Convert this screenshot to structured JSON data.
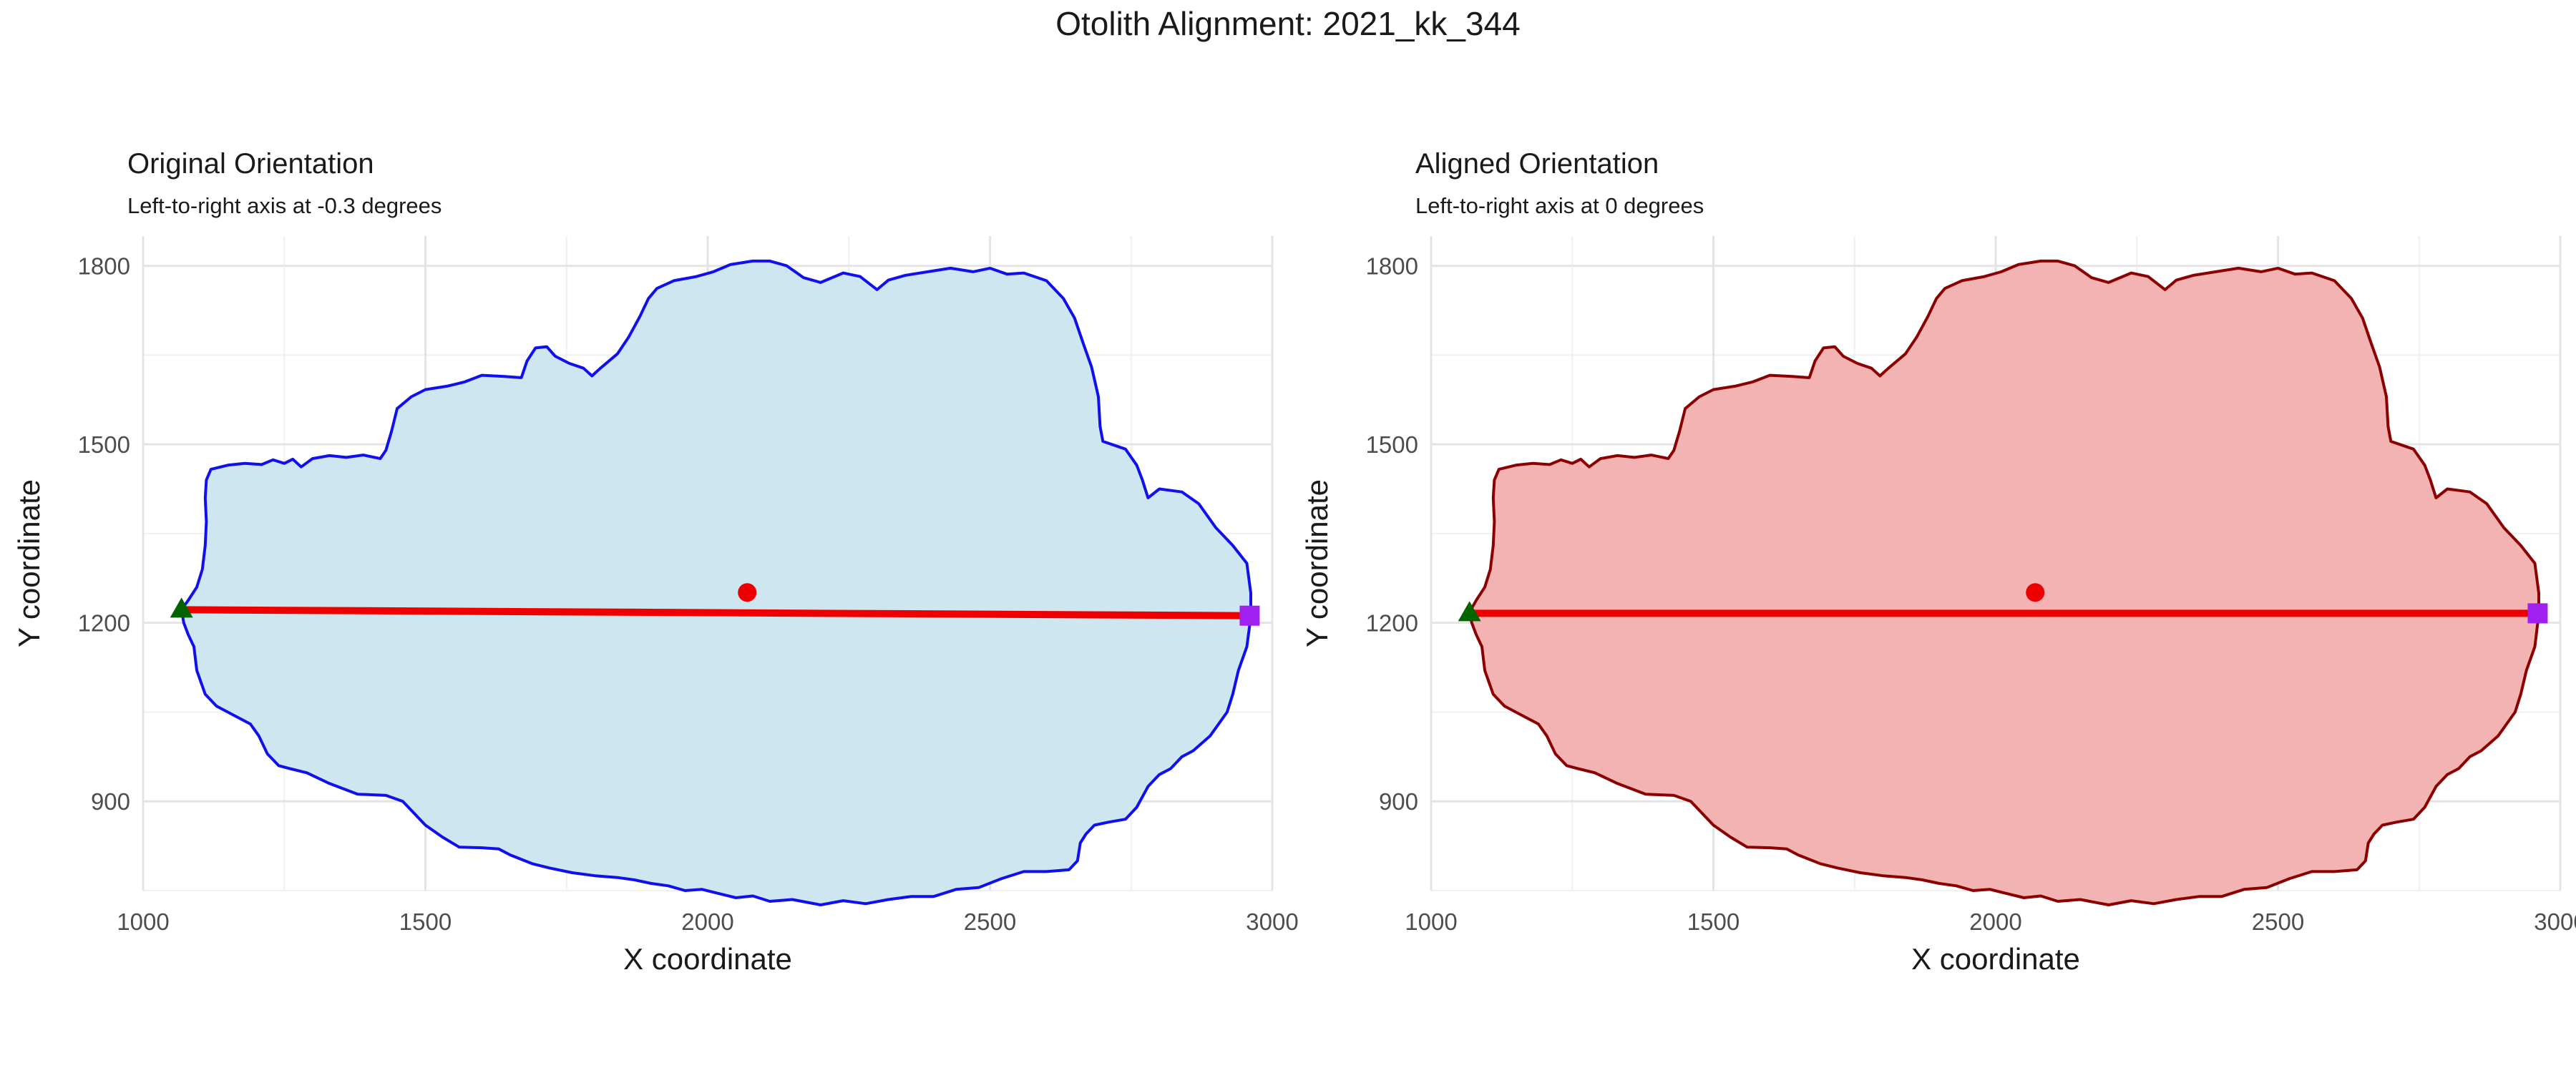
{
  "figure": {
    "title": "Otolith Alignment: 2021_kk_344"
  },
  "chart_data": [
    {
      "type": "scatter",
      "panel": "left",
      "title": "Original Orientation",
      "subtitle": "Left-to-right axis at -0.3 degrees",
      "xlabel": "X coordinate",
      "ylabel": "Y coordinate",
      "xlim": [
        1000,
        3000
      ],
      "ylim": [
        750,
        1850
      ],
      "x_ticks": [
        1000,
        1500,
        2000,
        2500,
        3000
      ],
      "y_ticks": [
        900,
        1200,
        1500,
        1800
      ],
      "grid": true,
      "outline_fill": "#cde6ef",
      "outline_stroke": "#1010ee",
      "outline": [
        [
          1068,
          1222
        ],
        [
          1080,
          1238
        ],
        [
          1095,
          1260
        ],
        [
          1105,
          1290
        ],
        [
          1110,
          1330
        ],
        [
          1112,
          1370
        ],
        [
          1110,
          1410
        ],
        [
          1112,
          1440
        ],
        [
          1120,
          1458
        ],
        [
          1150,
          1465
        ],
        [
          1180,
          1468
        ],
        [
          1210,
          1466
        ],
        [
          1230,
          1474
        ],
        [
          1250,
          1468
        ],
        [
          1265,
          1475
        ],
        [
          1280,
          1462
        ],
        [
          1300,
          1476
        ],
        [
          1330,
          1481
        ],
        [
          1360,
          1478
        ],
        [
          1390,
          1482
        ],
        [
          1420,
          1476
        ],
        [
          1430,
          1490
        ],
        [
          1440,
          1522
        ],
        [
          1450,
          1560
        ],
        [
          1475,
          1580
        ],
        [
          1500,
          1592
        ],
        [
          1540,
          1598
        ],
        [
          1570,
          1605
        ],
        [
          1600,
          1616
        ],
        [
          1640,
          1614
        ],
        [
          1670,
          1612
        ],
        [
          1680,
          1640
        ],
        [
          1695,
          1662
        ],
        [
          1715,
          1664
        ],
        [
          1730,
          1648
        ],
        [
          1755,
          1636
        ],
        [
          1780,
          1628
        ],
        [
          1795,
          1615
        ],
        [
          1810,
          1628
        ],
        [
          1840,
          1652
        ],
        [
          1860,
          1680
        ],
        [
          1880,
          1715
        ],
        [
          1895,
          1745
        ],
        [
          1910,
          1762
        ],
        [
          1940,
          1775
        ],
        [
          1980,
          1782
        ],
        [
          2010,
          1790
        ],
        [
          2040,
          1802
        ],
        [
          2080,
          1808
        ],
        [
          2110,
          1808
        ],
        [
          2140,
          1800
        ],
        [
          2170,
          1780
        ],
        [
          2200,
          1772
        ],
        [
          2240,
          1788
        ],
        [
          2270,
          1782
        ],
        [
          2300,
          1760
        ],
        [
          2320,
          1776
        ],
        [
          2350,
          1784
        ],
        [
          2390,
          1790
        ],
        [
          2430,
          1796
        ],
        [
          2470,
          1790
        ],
        [
          2500,
          1796
        ],
        [
          2530,
          1786
        ],
        [
          2560,
          1788
        ],
        [
          2600,
          1775
        ],
        [
          2630,
          1745
        ],
        [
          2650,
          1712
        ],
        [
          2665,
          1670
        ],
        [
          2680,
          1630
        ],
        [
          2692,
          1580
        ],
        [
          2695,
          1530
        ],
        [
          2700,
          1505
        ],
        [
          2740,
          1492
        ],
        [
          2760,
          1465
        ],
        [
          2770,
          1440
        ],
        [
          2780,
          1410
        ],
        [
          2800,
          1425
        ],
        [
          2840,
          1420
        ],
        [
          2870,
          1400
        ],
        [
          2900,
          1360
        ],
        [
          2930,
          1330
        ],
        [
          2955,
          1300
        ],
        [
          2962,
          1250
        ],
        [
          2962,
          1210
        ],
        [
          2955,
          1160
        ],
        [
          2940,
          1120
        ],
        [
          2930,
          1080
        ],
        [
          2920,
          1050
        ],
        [
          2890,
          1010
        ],
        [
          2860,
          985
        ],
        [
          2840,
          975
        ],
        [
          2820,
          955
        ],
        [
          2800,
          945
        ],
        [
          2780,
          925
        ],
        [
          2760,
          890
        ],
        [
          2740,
          870
        ],
        [
          2710,
          865
        ],
        [
          2685,
          860
        ],
        [
          2670,
          845
        ],
        [
          2660,
          830
        ],
        [
          2655,
          800
        ],
        [
          2640,
          785
        ],
        [
          2600,
          782
        ],
        [
          2560,
          782
        ],
        [
          2520,
          770
        ],
        [
          2480,
          755
        ],
        [
          2440,
          752
        ],
        [
          2400,
          740
        ],
        [
          2360,
          740
        ],
        [
          2320,
          735
        ],
        [
          2280,
          728
        ],
        [
          2240,
          733
        ],
        [
          2200,
          726
        ],
        [
          2150,
          735
        ],
        [
          2110,
          732
        ],
        [
          2080,
          741
        ],
        [
          2050,
          738
        ],
        [
          2020,
          745
        ],
        [
          1990,
          752
        ],
        [
          1960,
          750
        ],
        [
          1930,
          758
        ],
        [
          1900,
          762
        ],
        [
          1870,
          768
        ],
        [
          1840,
          772
        ],
        [
          1800,
          775
        ],
        [
          1760,
          780
        ],
        [
          1720,
          788
        ],
        [
          1690,
          795
        ],
        [
          1650,
          810
        ],
        [
          1630,
          820
        ],
        [
          1600,
          822
        ],
        [
          1560,
          823
        ],
        [
          1530,
          840
        ],
        [
          1500,
          860
        ],
        [
          1480,
          880
        ],
        [
          1460,
          900
        ],
        [
          1430,
          910
        ],
        [
          1380,
          912
        ],
        [
          1330,
          930
        ],
        [
          1290,
          948
        ],
        [
          1260,
          955
        ],
        [
          1240,
          960
        ],
        [
          1220,
          980
        ],
        [
          1205,
          1010
        ],
        [
          1190,
          1030
        ],
        [
          1160,
          1045
        ],
        [
          1130,
          1060
        ],
        [
          1110,
          1080
        ],
        [
          1095,
          1120
        ],
        [
          1090,
          1160
        ],
        [
          1080,
          1180
        ],
        [
          1072,
          1200
        ]
      ],
      "axis_line": {
        "start": [
          1068,
          1222
        ],
        "end": [
          2960,
          1212
        ],
        "color": "#ee0000"
      },
      "centroid": {
        "x": 2070,
        "y": 1251,
        "color": "#ee0000"
      },
      "start_marker": {
        "x": 1068,
        "y": 1222,
        "shape": "triangle",
        "color": "#006400"
      },
      "end_marker": {
        "x": 2960,
        "y": 1212,
        "shape": "square",
        "color": "#a020f0"
      }
    },
    {
      "type": "scatter",
      "panel": "right",
      "title": "Aligned Orientation",
      "subtitle": "Left-to-right axis at 0 degrees",
      "xlabel": "X coordinate",
      "ylabel": "Y coordinate",
      "xlim": [
        1000,
        3000
      ],
      "ylim": [
        750,
        1850
      ],
      "x_ticks": [
        1000,
        1500,
        2000,
        2500,
        3000
      ],
      "y_ticks": [
        900,
        1200,
        1500,
        1800
      ],
      "grid": true,
      "outline_fill": "#f4b3b3",
      "outline_stroke": "#8b0000",
      "outline": [
        [
          1068,
          1218
        ],
        [
          1080,
          1238
        ],
        [
          1095,
          1260
        ],
        [
          1105,
          1290
        ],
        [
          1110,
          1330
        ],
        [
          1112,
          1370
        ],
        [
          1110,
          1410
        ],
        [
          1112,
          1440
        ],
        [
          1120,
          1458
        ],
        [
          1150,
          1465
        ],
        [
          1180,
          1468
        ],
        [
          1210,
          1466
        ],
        [
          1230,
          1474
        ],
        [
          1250,
          1468
        ],
        [
          1265,
          1475
        ],
        [
          1280,
          1462
        ],
        [
          1300,
          1476
        ],
        [
          1330,
          1481
        ],
        [
          1360,
          1478
        ],
        [
          1390,
          1482
        ],
        [
          1420,
          1476
        ],
        [
          1430,
          1490
        ],
        [
          1440,
          1522
        ],
        [
          1450,
          1560
        ],
        [
          1475,
          1580
        ],
        [
          1500,
          1592
        ],
        [
          1540,
          1598
        ],
        [
          1570,
          1605
        ],
        [
          1600,
          1616
        ],
        [
          1640,
          1614
        ],
        [
          1670,
          1612
        ],
        [
          1680,
          1640
        ],
        [
          1695,
          1662
        ],
        [
          1715,
          1664
        ],
        [
          1730,
          1648
        ],
        [
          1755,
          1636
        ],
        [
          1780,
          1628
        ],
        [
          1795,
          1615
        ],
        [
          1810,
          1628
        ],
        [
          1840,
          1652
        ],
        [
          1860,
          1680
        ],
        [
          1880,
          1715
        ],
        [
          1895,
          1745
        ],
        [
          1910,
          1762
        ],
        [
          1940,
          1775
        ],
        [
          1980,
          1782
        ],
        [
          2010,
          1790
        ],
        [
          2040,
          1802
        ],
        [
          2080,
          1808
        ],
        [
          2110,
          1808
        ],
        [
          2140,
          1800
        ],
        [
          2170,
          1780
        ],
        [
          2200,
          1772
        ],
        [
          2240,
          1788
        ],
        [
          2270,
          1782
        ],
        [
          2300,
          1760
        ],
        [
          2320,
          1776
        ],
        [
          2350,
          1784
        ],
        [
          2390,
          1790
        ],
        [
          2430,
          1796
        ],
        [
          2470,
          1790
        ],
        [
          2500,
          1796
        ],
        [
          2530,
          1786
        ],
        [
          2560,
          1788
        ],
        [
          2600,
          1775
        ],
        [
          2630,
          1745
        ],
        [
          2650,
          1712
        ],
        [
          2665,
          1670
        ],
        [
          2680,
          1630
        ],
        [
          2692,
          1580
        ],
        [
          2695,
          1530
        ],
        [
          2700,
          1505
        ],
        [
          2740,
          1492
        ],
        [
          2760,
          1465
        ],
        [
          2770,
          1440
        ],
        [
          2780,
          1410
        ],
        [
          2800,
          1425
        ],
        [
          2840,
          1420
        ],
        [
          2870,
          1400
        ],
        [
          2900,
          1360
        ],
        [
          2930,
          1330
        ],
        [
          2955,
          1300
        ],
        [
          2962,
          1250
        ],
        [
          2962,
          1215
        ],
        [
          2955,
          1160
        ],
        [
          2940,
          1120
        ],
        [
          2930,
          1080
        ],
        [
          2920,
          1050
        ],
        [
          2890,
          1010
        ],
        [
          2860,
          985
        ],
        [
          2840,
          975
        ],
        [
          2820,
          955
        ],
        [
          2800,
          945
        ],
        [
          2780,
          925
        ],
        [
          2760,
          890
        ],
        [
          2740,
          870
        ],
        [
          2710,
          865
        ],
        [
          2685,
          860
        ],
        [
          2670,
          845
        ],
        [
          2660,
          830
        ],
        [
          2655,
          800
        ],
        [
          2640,
          785
        ],
        [
          2600,
          782
        ],
        [
          2560,
          782
        ],
        [
          2520,
          770
        ],
        [
          2480,
          755
        ],
        [
          2440,
          752
        ],
        [
          2400,
          740
        ],
        [
          2360,
          740
        ],
        [
          2320,
          735
        ],
        [
          2280,
          728
        ],
        [
          2240,
          733
        ],
        [
          2200,
          726
        ],
        [
          2150,
          735
        ],
        [
          2110,
          732
        ],
        [
          2080,
          741
        ],
        [
          2050,
          738
        ],
        [
          2020,
          745
        ],
        [
          1990,
          752
        ],
        [
          1960,
          750
        ],
        [
          1930,
          758
        ],
        [
          1900,
          762
        ],
        [
          1870,
          768
        ],
        [
          1840,
          772
        ],
        [
          1800,
          775
        ],
        [
          1760,
          780
        ],
        [
          1720,
          788
        ],
        [
          1690,
          795
        ],
        [
          1650,
          810
        ],
        [
          1630,
          820
        ],
        [
          1600,
          822
        ],
        [
          1560,
          823
        ],
        [
          1530,
          840
        ],
        [
          1500,
          860
        ],
        [
          1480,
          880
        ],
        [
          1460,
          900
        ],
        [
          1430,
          910
        ],
        [
          1380,
          912
        ],
        [
          1330,
          930
        ],
        [
          1290,
          948
        ],
        [
          1260,
          955
        ],
        [
          1240,
          960
        ],
        [
          1220,
          980
        ],
        [
          1205,
          1010
        ],
        [
          1190,
          1030
        ],
        [
          1160,
          1045
        ],
        [
          1130,
          1060
        ],
        [
          1110,
          1080
        ],
        [
          1095,
          1120
        ],
        [
          1090,
          1160
        ],
        [
          1080,
          1180
        ],
        [
          1072,
          1200
        ]
      ],
      "axis_line": {
        "start": [
          1068,
          1216
        ],
        "end": [
          2960,
          1216
        ],
        "color": "#ee0000"
      },
      "centroid": {
        "x": 2070,
        "y": 1251,
        "color": "#ee0000"
      },
      "start_marker": {
        "x": 1068,
        "y": 1216,
        "shape": "triangle",
        "color": "#006400"
      },
      "end_marker": {
        "x": 2960,
        "y": 1216,
        "shape": "square",
        "color": "#a020f0"
      }
    }
  ]
}
